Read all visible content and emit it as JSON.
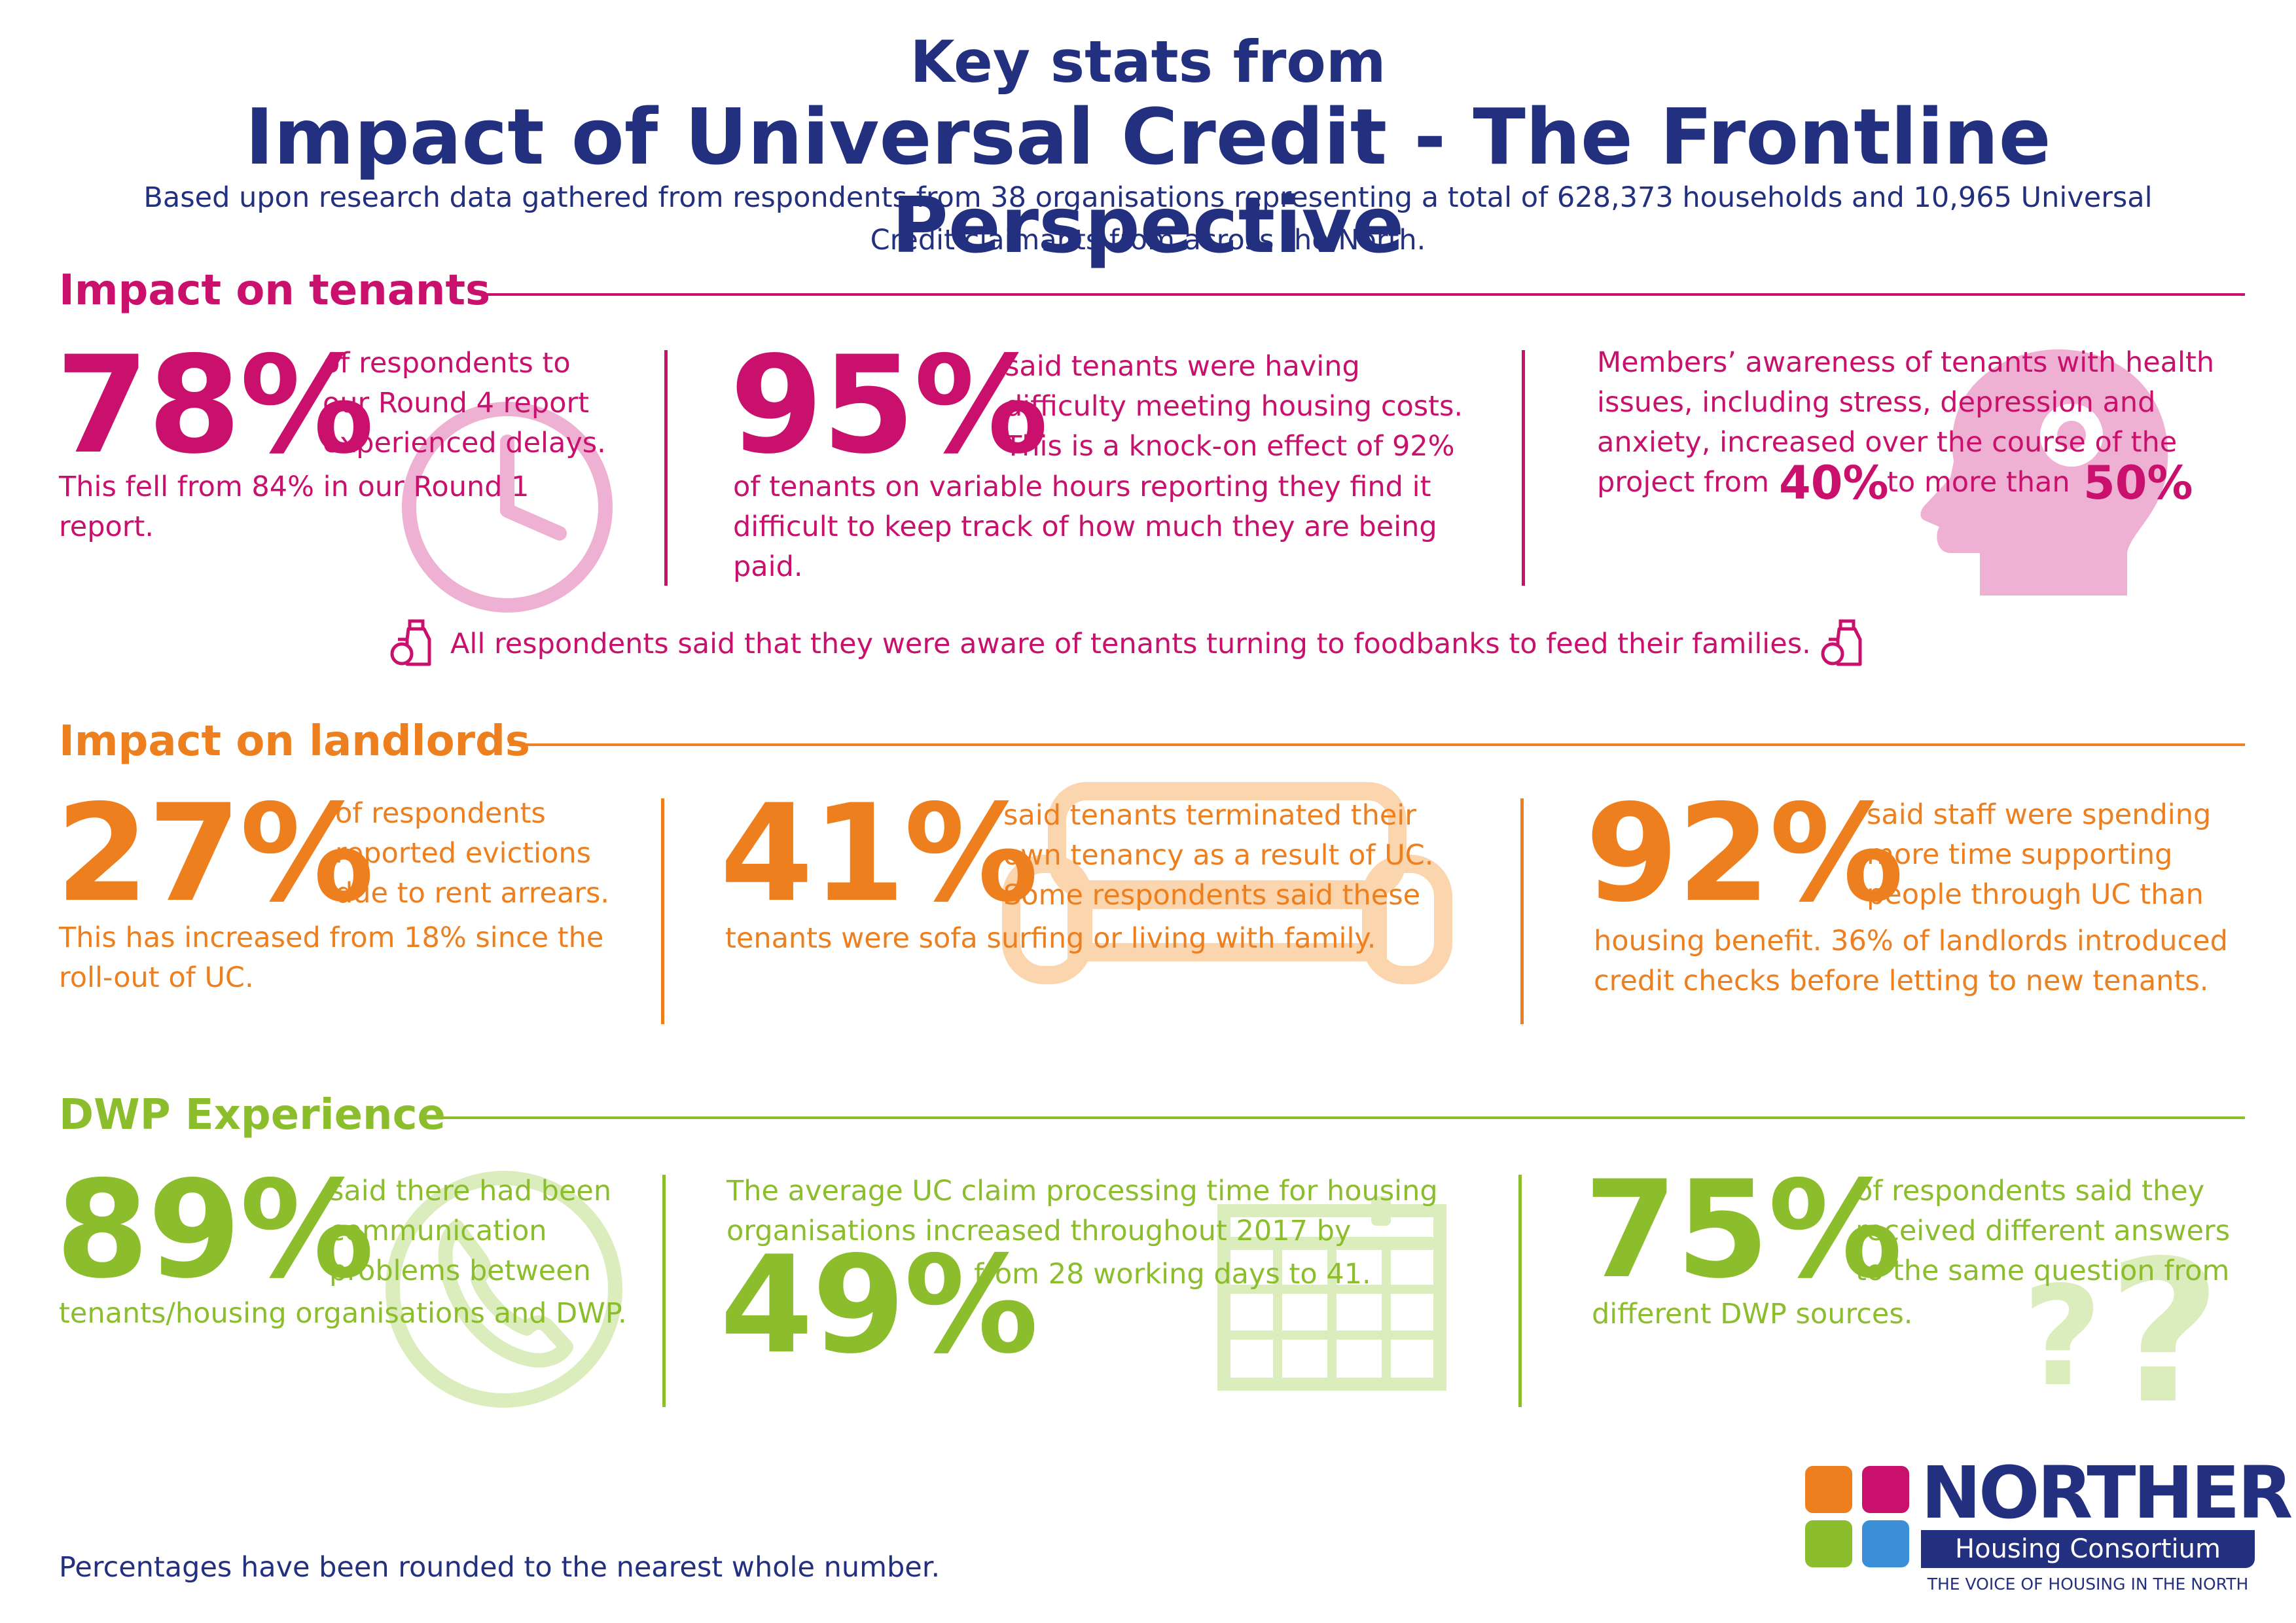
{
  "header": {
    "title_line1": "Key stats from",
    "title_line2": "Impact of Universal Credit - The Frontline Perspective",
    "subtitle": "Based upon research data gathered from respondents from 38 organisations representing a total of 628,373 households and 10,965 Universal Credit claimants from across the North."
  },
  "tenants": {
    "title": "Impact on tenants",
    "stat1": {
      "value": "78%",
      "text_a": "of respondents to our Round 4 report experienced delays.",
      "text_b": "This fell from 84% in our Round 1 report."
    },
    "stat2": {
      "value": "95%",
      "text_a": "said tenants were having difficulty meeting housing costs. This is a knock-on effect of 92%",
      "text_b": "of tenants on variable hours reporting they find it difficult to keep track of how much they are being paid."
    },
    "stat3": {
      "text": "Members’ awareness of tenants with health issues, including stress, depression and anxiety, increased over the course of the",
      "project_from": "project from",
      "value_from": "40%",
      "to_more_than": "to more than",
      "value_to": "50%"
    },
    "foodbank": "All respondents said that they were aware of tenants turning to foodbanks to feed their families."
  },
  "landlords": {
    "title": "Impact on landlords",
    "stat1": {
      "value": "27%",
      "text_a": "of respondents reported evictions due to rent arrears.",
      "text_b": "This has increased from 18% since the roll-out of UC."
    },
    "stat2": {
      "value": "41%",
      "text_a": "said tenants terminated their own tenancy as a result of UC. Some respondents said these",
      "text_b": "tenants were sofa surfing or living with family."
    },
    "stat3": {
      "value": "92%",
      "text_a": "said staff were spending more time supporting people through UC than",
      "text_b": "housing benefit. 36% of landlords introduced credit checks before letting to new tenants."
    }
  },
  "dwp": {
    "title": "DWP Experience",
    "stat1": {
      "value": "89%",
      "text_a": "said there had been communication problems between",
      "text_b": "tenants/housing organisations and DWP."
    },
    "stat2": {
      "value": "49%",
      "text_a": "The average UC claim processing time for housing organisations increased throughout 2017 by",
      "text_b": "from 28 working days to 41."
    },
    "stat3": {
      "value": "75%",
      "text_a": "of respondents said they received different answers to the same question from",
      "text_b": "different DWP sources."
    }
  },
  "footer": {
    "note": "Percentages have been rounded to the nearest whole number.",
    "logo_name": "NORTHERN",
    "logo_sub": "Housing Consortium",
    "logo_tagline": "THE VOICE OF HOUSING IN THE NORTH"
  },
  "colors": {
    "navy": "#233080",
    "pink": "#c8106c",
    "orange": "#ee7f1f",
    "green": "#8cbd2c",
    "blue": "#3b8fd6"
  },
  "icons": [
    "clock-icon",
    "head-icon",
    "bottle-jar-icon",
    "sofa-icon",
    "phone-icon",
    "calendar-icon",
    "question-mark-icon"
  ]
}
